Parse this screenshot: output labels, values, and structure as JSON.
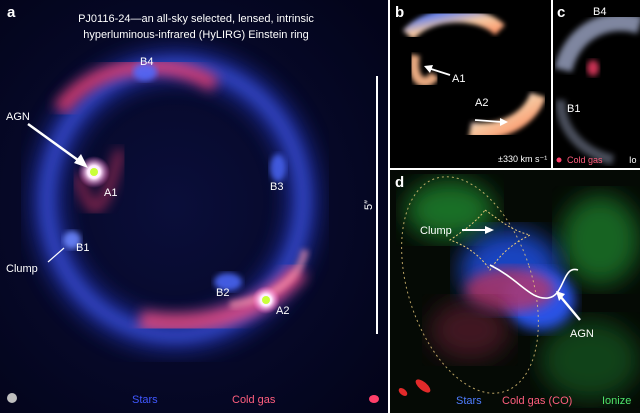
{
  "panel_a": {
    "letter": "a",
    "title_line1": "PJ0116-24—an all-sky selected, lensed, intrinsic",
    "title_line2": "hyperluminous-infrared (HyLIRG) Einstein ring",
    "labels": {
      "agn": "AGN",
      "a1": "A1",
      "a2": "A2",
      "b1": "B1",
      "b2": "B2",
      "b3": "B3",
      "b4": "B4",
      "clump": "Clump"
    },
    "scale": "5″",
    "legend": {
      "stars": "Stars",
      "cold_gas": "Cold gas"
    }
  },
  "panel_b": {
    "letter": "b",
    "labels": {
      "a1": "A1",
      "a2": "A2"
    },
    "velocity": "±330 km s⁻¹"
  },
  "panel_c": {
    "letter": "c",
    "labels": {
      "b4": "B4",
      "b1": "B1"
    },
    "legend": {
      "cold_gas": "Cold gas",
      "cut": "Io"
    }
  },
  "panel_d": {
    "letter": "d",
    "labels": {
      "clump": "Clump",
      "agn": "AGN"
    },
    "legend": {
      "stars": "Stars",
      "cold_gas": "Cold gas (CO)",
      "ionized": "Ionize"
    }
  },
  "colors": {
    "stars": "#3a58ff",
    "cold_gas": "#ff4d6d",
    "ionized": "#39d65a",
    "background": "#06081e"
  }
}
